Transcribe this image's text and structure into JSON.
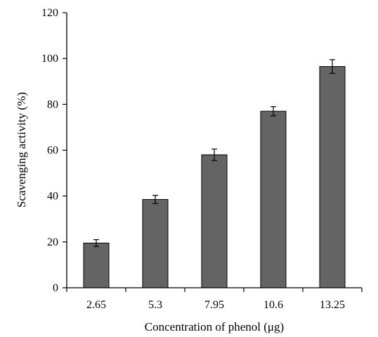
{
  "chart_data": {
    "type": "bar",
    "categories": [
      "2.65",
      "5.3",
      "7.95",
      "10.6",
      "13.25"
    ],
    "values": [
      19.5,
      38.5,
      58,
      77,
      96.5
    ],
    "errors": [
      1.5,
      1.8,
      2.5,
      2.0,
      3.0
    ],
    "xlabel": "Concentration of phenol (μg)",
    "ylabel": "Scavenging activity (%)",
    "ylim": [
      0,
      120
    ],
    "yticks": [
      "0",
      "20",
      "40",
      "60",
      "80",
      "100",
      "120"
    ],
    "grid": false,
    "bar_color": "#646464"
  }
}
